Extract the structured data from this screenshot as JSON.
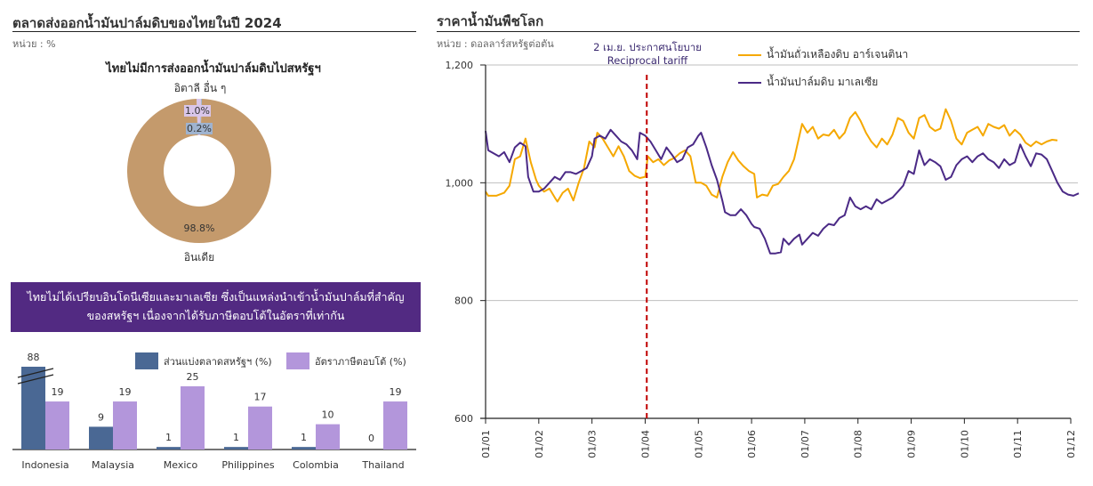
{
  "left_panel": {
    "title": "ตลาดส่งออกน้ำมันปาล์มดิบของไทยในปี 2024",
    "unit": "หน่วย : %",
    "donut_subtitle": "ไทยไม่มีการส่งออกน้ำมันปาล์มดิบไปสหรัฐฯ",
    "banner_line1": "ไทยไม่ได้เปรียบอินโดนีเซียและมาเลเซีย ซึ่งเป็นแหล่งนำเข้าน้ำมันปาล์มที่สำคัญ",
    "banner_line2": "ของสหรัฐฯ เนื่องจากได้รับภาษีตอบโต้ในอัตราที่เท่ากัน"
  },
  "right_panel": {
    "title": "ราคาน้ำมันพืชโลก",
    "unit": "หน่วย : ดอลลาร์สหรัฐต่อตัน",
    "annotation_line1": "2 เม.ย. ประกาศนโยบาย",
    "annotation_line2": "Reciprocal tariff"
  },
  "colors": {
    "india": "#c49a6c",
    "other": "#d9c6ea",
    "italy": "#9fb3cf",
    "us_share": "#4a6894",
    "tariff": "#b396db",
    "soybean": "#f5a800",
    "palm": "#4b2a86",
    "banner": "#522a82",
    "annotation": "#c00000",
    "grid": "#bfbfbf"
  },
  "chart_data": [
    {
      "type": "pie",
      "variant": "donut",
      "title": "ไทยไม่มีการส่งออกน้ำมันปาล์มดิบไปสหรัฐฯ",
      "unit": "%",
      "slices": [
        {
          "name": "อินเดีย",
          "value": 98.8,
          "label": "98.8%"
        },
        {
          "name": "อื่น ๆ",
          "value": 1.0,
          "label": "1.0%"
        },
        {
          "name": "อิตาลี",
          "value": 0.2,
          "label": "0.2%"
        }
      ],
      "category_labels": {
        "top": "อิตาลี อื่น ๆ",
        "bottom": "อินเดีย"
      }
    },
    {
      "type": "bar",
      "categories": [
        "Indonesia",
        "Malaysia",
        "Mexico",
        "Philippines",
        "Colombia",
        "Thailand"
      ],
      "series": [
        {
          "name": "ส่วนแบ่งตลาดสหรัฐฯ (%)",
          "values": [
            88,
            9,
            1,
            1,
            1,
            0
          ],
          "labels": [
            "88",
            "9",
            "1",
            "1",
            "1",
            "0"
          ]
        },
        {
          "name": "อัตราภาษีตอบโต้ (%)",
          "values": [
            19,
            19,
            25,
            17,
            10,
            19
          ],
          "labels": [
            "19",
            "19",
            "25",
            "17",
            "10",
            "19"
          ]
        }
      ],
      "axis_break": "Indonesia share bar truncated",
      "legend": "top-right"
    },
    {
      "type": "line",
      "title": "ราคาน้ำมันพืชโลก",
      "ylabel": "หน่วย : ดอลลาร์สหรัฐต่อตัน",
      "ylim": [
        600,
        1200
      ],
      "yticks": [
        "600",
        "800",
        "1,000",
        "1,200"
      ],
      "ytick_values": [
        600,
        800,
        1000,
        1200
      ],
      "xticks": [
        "01/01",
        "01/02",
        "01/03",
        "01/04",
        "01/05",
        "01/06",
        "01/07",
        "01/08",
        "01/09",
        "01/10",
        "01/11",
        "01/12"
      ],
      "xlim_months": [
        0,
        11
      ],
      "grid": "horizontal",
      "annotation": {
        "x_month": 3.03,
        "text": "2 เม.ย. ประกาศนโยบาย Reciprocal tariff",
        "style": "dashed-red"
      },
      "legend": "top-right",
      "series": [
        {
          "name": "น้ำมันถั่วเหลืองดิบ อาร์เจนตินา",
          "points": [
            [
              0,
              985
            ],
            [
              0.05,
              978
            ],
            [
              0.2,
              978
            ],
            [
              0.35,
              983
            ],
            [
              0.45,
              995
            ],
            [
              0.55,
              1040
            ],
            [
              0.65,
              1045
            ],
            [
              0.75,
              1075
            ],
            [
              0.85,
              1035
            ],
            [
              0.95,
              1005
            ],
            [
              1.0,
              995
            ],
            [
              1.1,
              985
            ],
            [
              1.2,
              990
            ],
            [
              1.3,
              975
            ],
            [
              1.35,
              968
            ],
            [
              1.45,
              983
            ],
            [
              1.55,
              990
            ],
            [
              1.65,
              970
            ],
            [
              1.75,
              1000
            ],
            [
              1.85,
              1025
            ],
            [
              1.95,
              1070
            ],
            [
              2.05,
              1060
            ],
            [
              2.1,
              1085
            ],
            [
              2.2,
              1075
            ],
            [
              2.3,
              1060
            ],
            [
              2.4,
              1045
            ],
            [
              2.5,
              1062
            ],
            [
              2.6,
              1045
            ],
            [
              2.7,
              1020
            ],
            [
              2.8,
              1012
            ],
            [
              2.9,
              1008
            ],
            [
              3.0,
              1010
            ],
            [
              3.05,
              1045
            ],
            [
              3.15,
              1035
            ],
            [
              3.25,
              1040
            ],
            [
              3.35,
              1030
            ],
            [
              3.45,
              1038
            ],
            [
              3.55,
              1042
            ],
            [
              3.65,
              1050
            ],
            [
              3.75,
              1055
            ],
            [
              3.85,
              1045
            ],
            [
              3.95,
              1000
            ],
            [
              4.05,
              1000
            ],
            [
              4.15,
              995
            ],
            [
              4.25,
              980
            ],
            [
              4.35,
              975
            ],
            [
              4.45,
              1010
            ],
            [
              4.55,
              1035
            ],
            [
              4.65,
              1052
            ],
            [
              4.75,
              1038
            ],
            [
              4.85,
              1028
            ],
            [
              4.95,
              1020
            ],
            [
              5.05,
              1015
            ],
            [
              5.1,
              975
            ],
            [
              5.2,
              980
            ],
            [
              5.3,
              978
            ],
            [
              5.4,
              995
            ],
            [
              5.5,
              998
            ],
            [
              5.6,
              1010
            ],
            [
              5.7,
              1020
            ],
            [
              5.8,
              1040
            ],
            [
              5.9,
              1080
            ],
            [
              5.95,
              1100
            ],
            [
              6.05,
              1085
            ],
            [
              6.15,
              1095
            ],
            [
              6.25,
              1075
            ],
            [
              6.35,
              1082
            ],
            [
              6.45,
              1080
            ],
            [
              6.55,
              1090
            ],
            [
              6.65,
              1075
            ],
            [
              6.75,
              1085
            ],
            [
              6.85,
              1110
            ],
            [
              6.95,
              1120
            ],
            [
              7.05,
              1105
            ],
            [
              7.15,
              1085
            ],
            [
              7.25,
              1070
            ],
            [
              7.35,
              1060
            ],
            [
              7.45,
              1075
            ],
            [
              7.55,
              1065
            ],
            [
              7.65,
              1082
            ],
            [
              7.75,
              1110
            ],
            [
              7.85,
              1105
            ],
            [
              7.95,
              1085
            ],
            [
              8.05,
              1075
            ],
            [
              8.15,
              1110
            ],
            [
              8.25,
              1115
            ],
            [
              8.35,
              1095
            ],
            [
              8.45,
              1088
            ],
            [
              8.55,
              1092
            ],
            [
              8.65,
              1125
            ],
            [
              8.75,
              1105
            ],
            [
              8.85,
              1075
            ],
            [
              8.95,
              1065
            ],
            [
              9.05,
              1085
            ],
            [
              9.15,
              1090
            ],
            [
              9.25,
              1095
            ],
            [
              9.35,
              1080
            ],
            [
              9.45,
              1100
            ],
            [
              9.55,
              1095
            ],
            [
              9.65,
              1092
            ],
            [
              9.75,
              1098
            ],
            [
              9.85,
              1080
            ],
            [
              9.95,
              1090
            ],
            [
              10.05,
              1082
            ],
            [
              10.15,
              1068
            ],
            [
              10.25,
              1062
            ],
            [
              10.35,
              1070
            ],
            [
              10.45,
              1065
            ],
            [
              10.55,
              1070
            ],
            [
              10.65,
              1073
            ],
            [
              10.75,
              1072
            ]
          ]
        },
        {
          "name": "น้ำมันปาล์มดิบ มาเลเซีย",
          "points": [
            [
              0,
              1088
            ],
            [
              0.05,
              1055
            ],
            [
              0.15,
              1050
            ],
            [
              0.25,
              1045
            ],
            [
              0.35,
              1052
            ],
            [
              0.45,
              1035
            ],
            [
              0.55,
              1060
            ],
            [
              0.65,
              1068
            ],
            [
              0.75,
              1062
            ],
            [
              0.8,
              1010
            ],
            [
              0.9,
              985
            ],
            [
              1.0,
              985
            ],
            [
              1.1,
              990
            ],
            [
              1.2,
              1000
            ],
            [
              1.3,
              1010
            ],
            [
              1.4,
              1005
            ],
            [
              1.5,
              1018
            ],
            [
              1.6,
              1018
            ],
            [
              1.7,
              1015
            ],
            [
              1.8,
              1020
            ],
            [
              1.9,
              1025
            ],
            [
              2.0,
              1045
            ],
            [
              2.05,
              1075
            ],
            [
              2.15,
              1080
            ],
            [
              2.25,
              1075
            ],
            [
              2.35,
              1090
            ],
            [
              2.45,
              1080
            ],
            [
              2.55,
              1070
            ],
            [
              2.65,
              1065
            ],
            [
              2.75,
              1055
            ],
            [
              2.85,
              1040
            ],
            [
              2.9,
              1085
            ],
            [
              3.0,
              1080
            ],
            [
              3.1,
              1070
            ],
            [
              3.2,
              1055
            ],
            [
              3.3,
              1040
            ],
            [
              3.4,
              1060
            ],
            [
              3.5,
              1048
            ],
            [
              3.6,
              1035
            ],
            [
              3.7,
              1040
            ],
            [
              3.8,
              1060
            ],
            [
              3.9,
              1065
            ],
            [
              4.0,
              1080
            ],
            [
              4.05,
              1085
            ],
            [
              4.15,
              1060
            ],
            [
              4.25,
              1030
            ],
            [
              4.35,
              1005
            ],
            [
              4.45,
              970
            ],
            [
              4.5,
              950
            ],
            [
              4.6,
              945
            ],
            [
              4.7,
              945
            ],
            [
              4.8,
              955
            ],
            [
              4.9,
              945
            ],
            [
              5.0,
              930
            ],
            [
              5.05,
              925
            ],
            [
              5.15,
              922
            ],
            [
              5.25,
              905
            ],
            [
              5.35,
              880
            ],
            [
              5.45,
              880
            ],
            [
              5.55,
              882
            ],
            [
              5.6,
              905
            ],
            [
              5.7,
              895
            ],
            [
              5.8,
              905
            ],
            [
              5.9,
              912
            ],
            [
              5.95,
              895
            ],
            [
              6.05,
              905
            ],
            [
              6.15,
              915
            ],
            [
              6.25,
              910
            ],
            [
              6.35,
              922
            ],
            [
              6.45,
              930
            ],
            [
              6.55,
              928
            ],
            [
              6.65,
              940
            ],
            [
              6.75,
              945
            ],
            [
              6.85,
              975
            ],
            [
              6.95,
              960
            ],
            [
              7.05,
              955
            ],
            [
              7.15,
              960
            ],
            [
              7.25,
              955
            ],
            [
              7.35,
              972
            ],
            [
              7.45,
              965
            ],
            [
              7.55,
              970
            ],
            [
              7.65,
              975
            ],
            [
              7.75,
              985
            ],
            [
              7.85,
              995
            ],
            [
              7.95,
              1020
            ],
            [
              8.05,
              1015
            ],
            [
              8.15,
              1055
            ],
            [
              8.25,
              1030
            ],
            [
              8.35,
              1040
            ],
            [
              8.45,
              1035
            ],
            [
              8.55,
              1028
            ],
            [
              8.65,
              1005
            ],
            [
              8.75,
              1010
            ],
            [
              8.85,
              1030
            ],
            [
              8.95,
              1040
            ],
            [
              9.05,
              1045
            ],
            [
              9.15,
              1035
            ],
            [
              9.25,
              1045
            ],
            [
              9.35,
              1050
            ],
            [
              9.45,
              1040
            ],
            [
              9.55,
              1035
            ],
            [
              9.65,
              1025
            ],
            [
              9.75,
              1040
            ],
            [
              9.85,
              1030
            ],
            [
              9.95,
              1035
            ],
            [
              10.05,
              1065
            ],
            [
              10.15,
              1045
            ],
            [
              10.25,
              1028
            ],
            [
              10.35,
              1050
            ],
            [
              10.45,
              1048
            ],
            [
              10.55,
              1040
            ],
            [
              10.65,
              1020
            ],
            [
              10.75,
              1000
            ],
            [
              10.85,
              985
            ],
            [
              10.95,
              980
            ],
            [
              11.05,
              978
            ],
            [
              11.15,
              982
            ]
          ]
        }
      ]
    }
  ]
}
